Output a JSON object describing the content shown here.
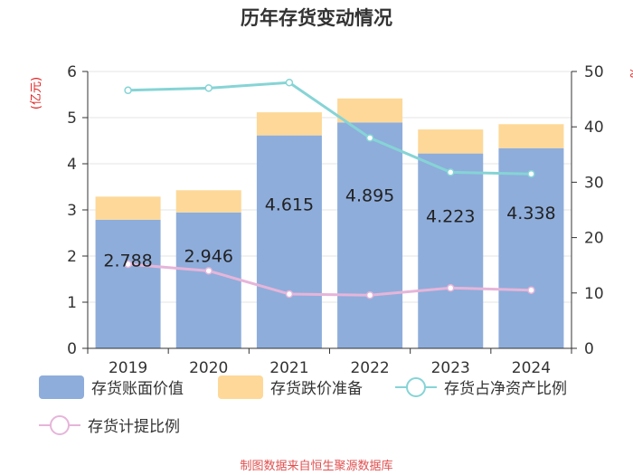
{
  "chart_data": {
    "type": "bar",
    "title": "历年存货变动情况",
    "categories": [
      "2019",
      "2020",
      "2021",
      "2022",
      "2023",
      "2024"
    ],
    "left_axis": {
      "unit": "(亿元)",
      "ylim": [
        0,
        6
      ],
      "ticks": [
        "0",
        "1",
        "2",
        "3",
        "4",
        "5",
        "6"
      ]
    },
    "right_axis": {
      "unit": "%",
      "ylim": [
        0,
        50
      ],
      "ticks": [
        "0",
        "10",
        "20",
        "30",
        "40",
        "50"
      ]
    },
    "series": [
      {
        "name": "存货账面价值",
        "kind": "bar",
        "axis": "left",
        "values": [
          2.788,
          2.946,
          4.615,
          4.895,
          4.223,
          4.338
        ],
        "labels": [
          "2.788",
          "2.946",
          "4.615",
          "4.895",
          "4.223",
          "4.338"
        ],
        "color": "#8eaddb"
      },
      {
        "name": "存货跌价准备",
        "kind": "bar-stack",
        "axis": "left",
        "values": [
          0.5,
          0.48,
          0.5,
          0.52,
          0.52,
          0.52
        ],
        "color": "#fdd898"
      },
      {
        "name": "存货占净资产比例",
        "kind": "line",
        "axis": "right",
        "values": [
          46.6,
          47.0,
          48.0,
          38.0,
          31.8,
          31.5
        ],
        "color": "#86d4d6"
      },
      {
        "name": "存货计提比例",
        "kind": "line",
        "axis": "right",
        "values": [
          15.2,
          14.0,
          9.8,
          9.6,
          10.9,
          10.5
        ],
        "color": "#e6b5d9"
      }
    ],
    "source": "制图数据来自恒生聚源数据库"
  }
}
